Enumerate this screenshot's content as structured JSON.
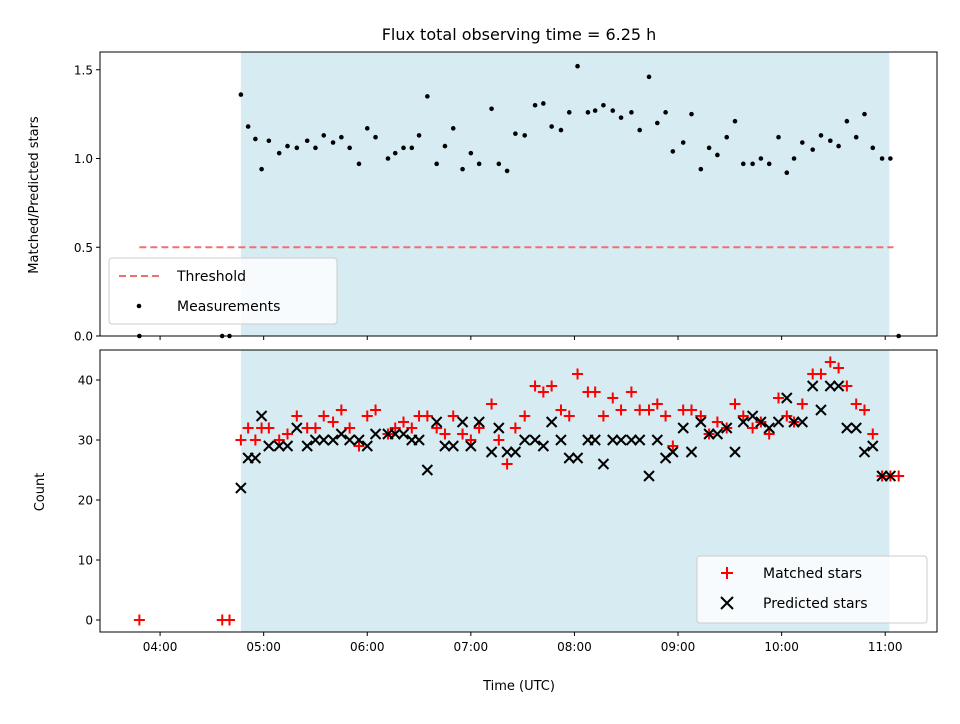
{
  "chart_data": [
    {
      "type": "scatter",
      "title": "Flux total observing time = 6.25 h",
      "xlabel": "",
      "ylabel": "Matched/Predicted stars",
      "ylim": [
        0,
        1.6
      ],
      "yticks": [
        "0.0",
        "0.5",
        "1.0",
        "1.5"
      ],
      "xlim_hours": [
        3.42,
        11.5
      ],
      "shaded_span_hours": [
        4.78,
        11.04
      ],
      "legend": "lower-left",
      "threshold": {
        "name": "Threshold",
        "y": 0.5,
        "x_hours": [
          3.8,
          11.08
        ],
        "color": "#f07070"
      },
      "measurements": {
        "name": "Measurements",
        "color": "#000000",
        "x_hours": [
          3.8,
          4.6,
          4.67,
          4.78,
          4.85,
          4.92,
          4.98,
          5.05,
          5.15,
          5.23,
          5.32,
          5.42,
          5.5,
          5.58,
          5.67,
          5.75,
          5.83,
          5.92,
          6.0,
          6.08,
          6.2,
          6.27,
          6.35,
          6.43,
          6.5,
          6.58,
          6.67,
          6.75,
          6.83,
          6.92,
          7.0,
          7.08,
          7.2,
          7.27,
          7.35,
          7.43,
          7.52,
          7.62,
          7.7,
          7.78,
          7.87,
          7.95,
          8.03,
          8.13,
          8.2,
          8.28,
          8.37,
          8.45,
          8.55,
          8.63,
          8.72,
          8.8,
          8.88,
          8.95,
          9.05,
          9.13,
          9.22,
          9.3,
          9.38,
          9.47,
          9.55,
          9.63,
          9.72,
          9.8,
          9.88,
          9.97,
          10.05,
          10.12,
          10.2,
          10.3,
          10.38,
          10.47,
          10.55,
          10.63,
          10.72,
          10.8,
          10.88,
          10.97,
          11.05,
          11.13
        ],
        "y": [
          0.0,
          0.0,
          0.0,
          1.36,
          1.18,
          1.11,
          0.94,
          1.1,
          1.03,
          1.07,
          1.06,
          1.1,
          1.06,
          1.13,
          1.09,
          1.12,
          1.06,
          0.97,
          1.17,
          1.12,
          1.0,
          1.03,
          1.06,
          1.06,
          1.13,
          1.35,
          0.97,
          1.07,
          1.17,
          0.94,
          1.03,
          0.97,
          1.28,
          0.97,
          0.93,
          1.14,
          1.13,
          1.3,
          1.31,
          1.18,
          1.16,
          1.26,
          1.52,
          1.26,
          1.27,
          1.3,
          1.27,
          1.23,
          1.26,
          1.16,
          1.46,
          1.2,
          1.26,
          1.04,
          1.09,
          1.25,
          0.94,
          1.06,
          1.02,
          1.12,
          1.21,
          0.97,
          0.97,
          1.0,
          0.97,
          1.12,
          0.92,
          1.0,
          1.09,
          1.05,
          1.13,
          1.1,
          1.07,
          1.21,
          1.12,
          1.25,
          1.06,
          1.0,
          1.0,
          0.0
        ]
      }
    },
    {
      "type": "scatter",
      "title": "",
      "xlabel": "Time (UTC)",
      "ylabel": "Count",
      "ylim": [
        -2,
        45
      ],
      "yticks": [
        "0",
        "10",
        "20",
        "30",
        "40"
      ],
      "xticks": [
        "04:00",
        "05:00",
        "06:00",
        "07:00",
        "08:00",
        "09:00",
        "10:00",
        "11:00"
      ],
      "xlim_hours": [
        3.42,
        11.5
      ],
      "shaded_span_hours": [
        4.78,
        11.04
      ],
      "legend": "lower-right",
      "series": [
        {
          "name": "Matched stars",
          "marker": "plus",
          "color": "#ff0000",
          "x_hours": [
            3.8,
            4.6,
            4.67,
            4.78,
            4.85,
            4.92,
            4.98,
            5.05,
            5.15,
            5.23,
            5.32,
            5.42,
            5.5,
            5.58,
            5.67,
            5.75,
            5.83,
            5.92,
            6.0,
            6.08,
            6.2,
            6.27,
            6.35,
            6.43,
            6.5,
            6.58,
            6.67,
            6.75,
            6.83,
            6.92,
            7.0,
            7.08,
            7.2,
            7.27,
            7.35,
            7.43,
            7.52,
            7.62,
            7.7,
            7.78,
            7.87,
            7.95,
            8.03,
            8.13,
            8.2,
            8.28,
            8.37,
            8.45,
            8.55,
            8.63,
            8.72,
            8.8,
            8.88,
            8.95,
            9.05,
            9.13,
            9.22,
            9.3,
            9.38,
            9.47,
            9.55,
            9.63,
            9.72,
            9.8,
            9.88,
            9.97,
            10.05,
            10.12,
            10.2,
            10.3,
            10.38,
            10.47,
            10.55,
            10.63,
            10.72,
            10.8,
            10.88,
            10.97,
            11.05,
            11.13
          ],
          "y": [
            0,
            0,
            0,
            30,
            32,
            30,
            32,
            32,
            30,
            31,
            34,
            32,
            32,
            34,
            33,
            35,
            32,
            29,
            34,
            35,
            31,
            32,
            33,
            32,
            34,
            34,
            32,
            31,
            34,
            31,
            30,
            32,
            36,
            30,
            26,
            32,
            34,
            39,
            38,
            39,
            35,
            34,
            41,
            38,
            38,
            34,
            37,
            35,
            38,
            35,
            35,
            36,
            34,
            29,
            35,
            35,
            34,
            31,
            33,
            32,
            36,
            34,
            32,
            33,
            31,
            37,
            34,
            33,
            36,
            41,
            41,
            43,
            42,
            39,
            36,
            35,
            31,
            24,
            24,
            24
          ]
        },
        {
          "name": "Predicted stars",
          "marker": "x",
          "color": "#000000",
          "x_hours": [
            4.78,
            4.85,
            4.92,
            4.98,
            5.05,
            5.15,
            5.23,
            5.32,
            5.42,
            5.5,
            5.58,
            5.67,
            5.75,
            5.83,
            5.92,
            6.0,
            6.08,
            6.2,
            6.27,
            6.35,
            6.43,
            6.5,
            6.58,
            6.67,
            6.75,
            6.83,
            6.92,
            7.0,
            7.08,
            7.2,
            7.27,
            7.35,
            7.43,
            7.52,
            7.62,
            7.7,
            7.78,
            7.87,
            7.95,
            8.03,
            8.13,
            8.2,
            8.28,
            8.37,
            8.45,
            8.55,
            8.63,
            8.72,
            8.8,
            8.88,
            8.95,
            9.05,
            9.13,
            9.22,
            9.3,
            9.38,
            9.47,
            9.55,
            9.63,
            9.72,
            9.8,
            9.88,
            9.97,
            10.05,
            10.12,
            10.2,
            10.3,
            10.38,
            10.47,
            10.55,
            10.63,
            10.72,
            10.8,
            10.88,
            10.97,
            11.05
          ],
          "y": [
            22,
            27,
            27,
            34,
            29,
            29,
            29,
            32,
            29,
            30,
            30,
            30,
            31,
            30,
            30,
            29,
            31,
            31,
            31,
            31,
            30,
            30,
            25,
            33,
            29,
            29,
            33,
            29,
            33,
            28,
            32,
            28,
            28,
            30,
            30,
            29,
            33,
            30,
            27,
            27,
            30,
            30,
            26,
            30,
            30,
            30,
            30,
            24,
            30,
            27,
            28,
            32,
            28,
            33,
            31,
            31,
            32,
            28,
            33,
            34,
            33,
            32,
            33,
            37,
            33,
            33,
            39,
            35,
            39,
            39,
            32,
            32,
            28,
            29,
            24,
            24
          ]
        }
      ]
    }
  ]
}
